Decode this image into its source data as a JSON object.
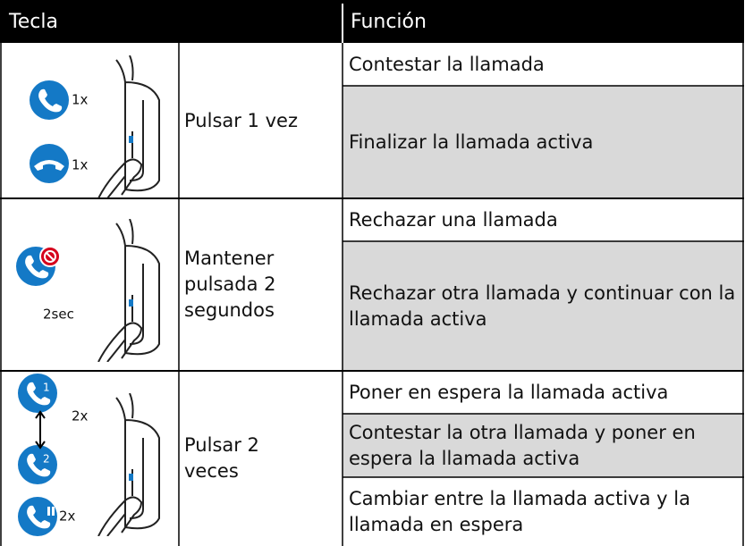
{
  "header": {
    "key": "Tecla",
    "function": "Función"
  },
  "rows": [
    {
      "icon_labels": [
        "1x",
        "1x"
      ],
      "action": "Pulsar 1 vez",
      "functions": [
        "Contestar la llamada",
        "Finalizar la llamada activa"
      ]
    },
    {
      "icon_labels": [
        "2sec"
      ],
      "action": "Mantener pulsada 2 segundos",
      "functions": [
        "Rechazar una llamada",
        "Rechazar otra llamada y continuar con la llamada activa"
      ]
    },
    {
      "icon_labels": [
        "2x",
        "2x"
      ],
      "icon_badges": [
        "1",
        "2"
      ],
      "action": "Pulsar 2 veces",
      "functions": [
        "Poner en espera la llamada activa",
        "Contestar la otra llamada y poner en espera la llamada activa",
        "Cambiar entre la llamada activa y la llamada en espera"
      ]
    }
  ]
}
